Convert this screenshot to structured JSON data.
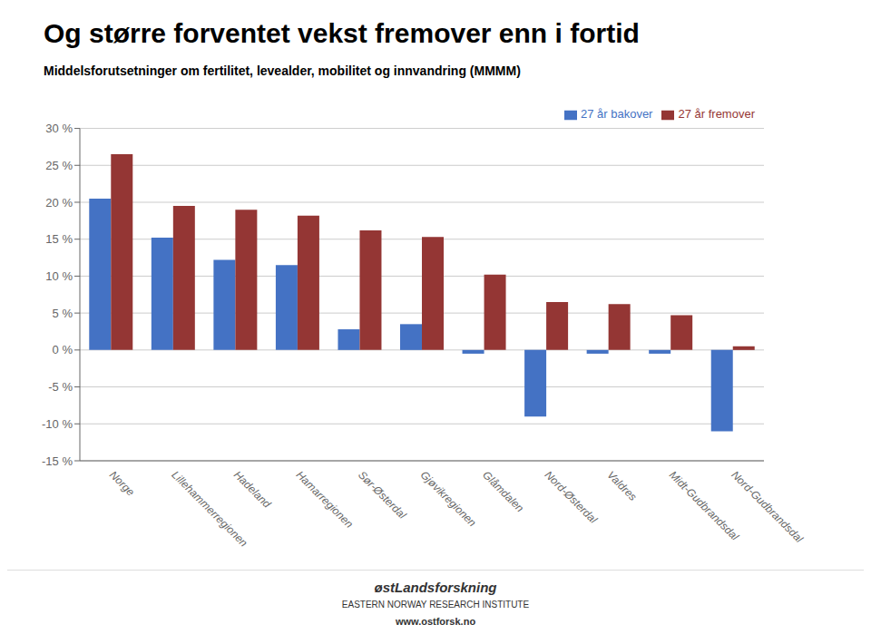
{
  "chart_data": {
    "type": "bar",
    "title": "Og større forventet vekst fremover enn i fortid",
    "subtitle": "Middelsforutsetninger om fertilitet, levealder, mobilitet og innvandring (MMMM)",
    "categories": [
      "Norge",
      "Lillehammerregionen",
      "Hadeland",
      "Hamarregionen",
      "Sør-Østerdal",
      "Gjøvikregionen",
      "Glåmdalen",
      "Nord-Østerdal",
      "Valdres",
      "Midt-Gudbrandsdal",
      "Nord-Gudbrandsdal"
    ],
    "series": [
      {
        "name": "27 år bakover",
        "color": "#4472C4",
        "values": [
          20.5,
          15.2,
          12.2,
          11.5,
          2.8,
          3.5,
          -0.5,
          -9.0,
          -0.5,
          -0.5,
          -11.0
        ]
      },
      {
        "name": "27 år fremover",
        "color": "#943634",
        "values": [
          26.5,
          19.5,
          19.0,
          18.2,
          16.2,
          15.3,
          10.2,
          6.5,
          6.2,
          4.7,
          0.5
        ]
      }
    ],
    "ylim": [
      -15,
      30
    ],
    "yticks": [
      {
        "value": -15,
        "label": "-15 %"
      },
      {
        "value": -10,
        "label": "-10 %"
      },
      {
        "value": -5,
        "label": "-5 %"
      },
      {
        "value": 0,
        "label": "0 %"
      },
      {
        "value": 5,
        "label": "5 %"
      },
      {
        "value": 10,
        "label": "10 %"
      },
      {
        "value": 15,
        "label": "15 %"
      },
      {
        "value": 20,
        "label": "20 %"
      },
      {
        "value": 25,
        "label": "25 %"
      },
      {
        "value": 30,
        "label": "30 %"
      }
    ],
    "grid": true,
    "legend": "upper right",
    "annotations": [
      "østLandsforskning",
      "EASTERN NORWAY RESEARCH INSTITUTE",
      "www.ostforsk.no"
    ]
  }
}
